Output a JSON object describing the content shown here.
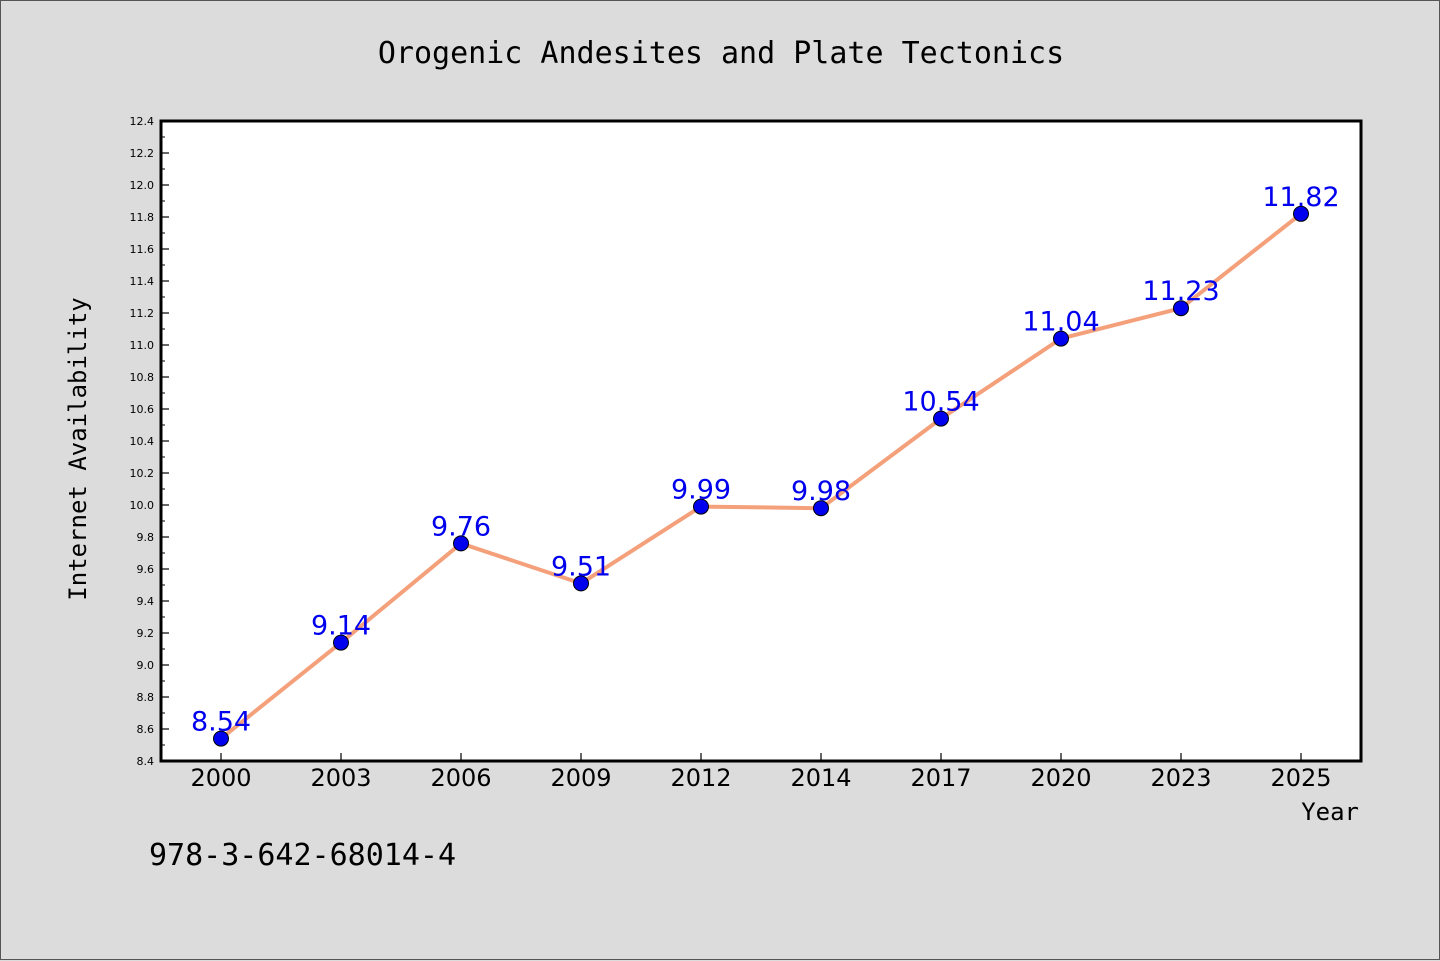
{
  "chart_data": {
    "type": "line",
    "title": "Orogenic Andesites and Plate Tectonics",
    "xlabel": "Year",
    "ylabel": "Internet Availability",
    "categories": [
      "2000",
      "2003",
      "2006",
      "2009",
      "2012",
      "2014",
      "2017",
      "2020",
      "2023",
      "2025"
    ],
    "series": [
      {
        "values": [
          8.54,
          9.14,
          9.76,
          9.51,
          9.99,
          9.98,
          10.54,
          11.04,
          11.23,
          11.82
        ],
        "value_labels": [
          "8.54",
          "9.14",
          "9.76",
          "9.51",
          "9.99",
          "9.98",
          "10.54",
          "11.04",
          "11.23",
          "11.82"
        ],
        "line_color": "#f4a07a",
        "marker_color": "#0000ee",
        "label_color": "#0000ee"
      }
    ],
    "ylim": [
      8.4,
      12.4
    ],
    "yticks": [
      "8.4",
      "8.6",
      "8.8",
      "9.0",
      "9.2",
      "9.4",
      "9.6",
      "9.8",
      "10.0",
      "10.2",
      "10.4",
      "10.6",
      "10.8",
      "11.0",
      "11.2",
      "11.4",
      "11.6",
      "11.8",
      "12.0",
      "12.2",
      "12.4"
    ],
    "grid": false,
    "legend": "none"
  },
  "footer": {
    "isbn": "978-3-642-68014-4"
  },
  "colors": {
    "background": "#dcdcdc",
    "plot_background": "#ffffff"
  }
}
